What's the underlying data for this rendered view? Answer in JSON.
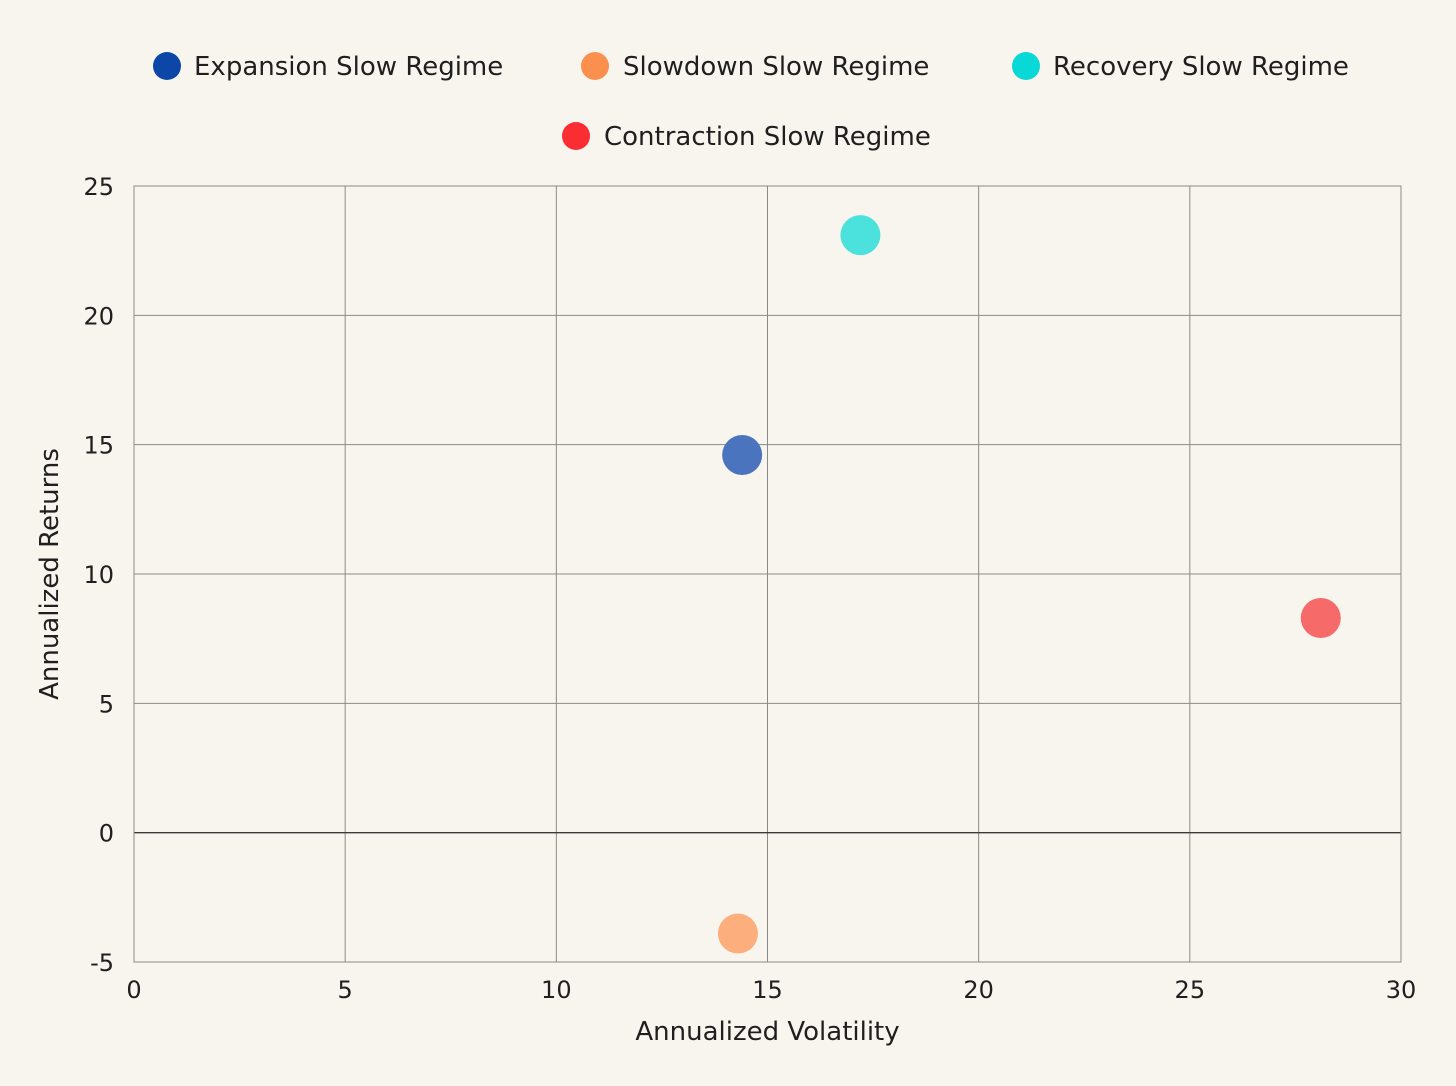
{
  "chart_data": {
    "type": "scatter",
    "title": "",
    "xlabel": "Annualized Volatility",
    "ylabel": "Annualized Returns",
    "xlim": [
      0,
      30
    ],
    "ylim": [
      -5,
      25
    ],
    "xticks": [
      0,
      5,
      10,
      15,
      20,
      25,
      30
    ],
    "yticks": [
      -5,
      0,
      5,
      10,
      15,
      20,
      25
    ],
    "grid": true,
    "legend_position": "top-center",
    "series": [
      {
        "name": "Expansion Slow Regime",
        "color": "#0c47a8",
        "point_color": "#4a74bd",
        "points": [
          {
            "x": 14.4,
            "y": 14.6
          }
        ]
      },
      {
        "name": "Slowdown Slow Regime",
        "color": "#fb8f4e",
        "point_color": "#fcae7c",
        "points": [
          {
            "x": 14.3,
            "y": -3.9
          }
        ]
      },
      {
        "name": "Recovery Slow Regime",
        "color": "#08d8d6",
        "point_color": "#4be1dd",
        "points": [
          {
            "x": 17.2,
            "y": 23.1
          }
        ]
      },
      {
        "name": "Contraction Slow Regime",
        "color": "#fa2d33",
        "point_color": "#f66a6a",
        "points": [
          {
            "x": 28.1,
            "y": 8.3
          }
        ]
      }
    ]
  }
}
